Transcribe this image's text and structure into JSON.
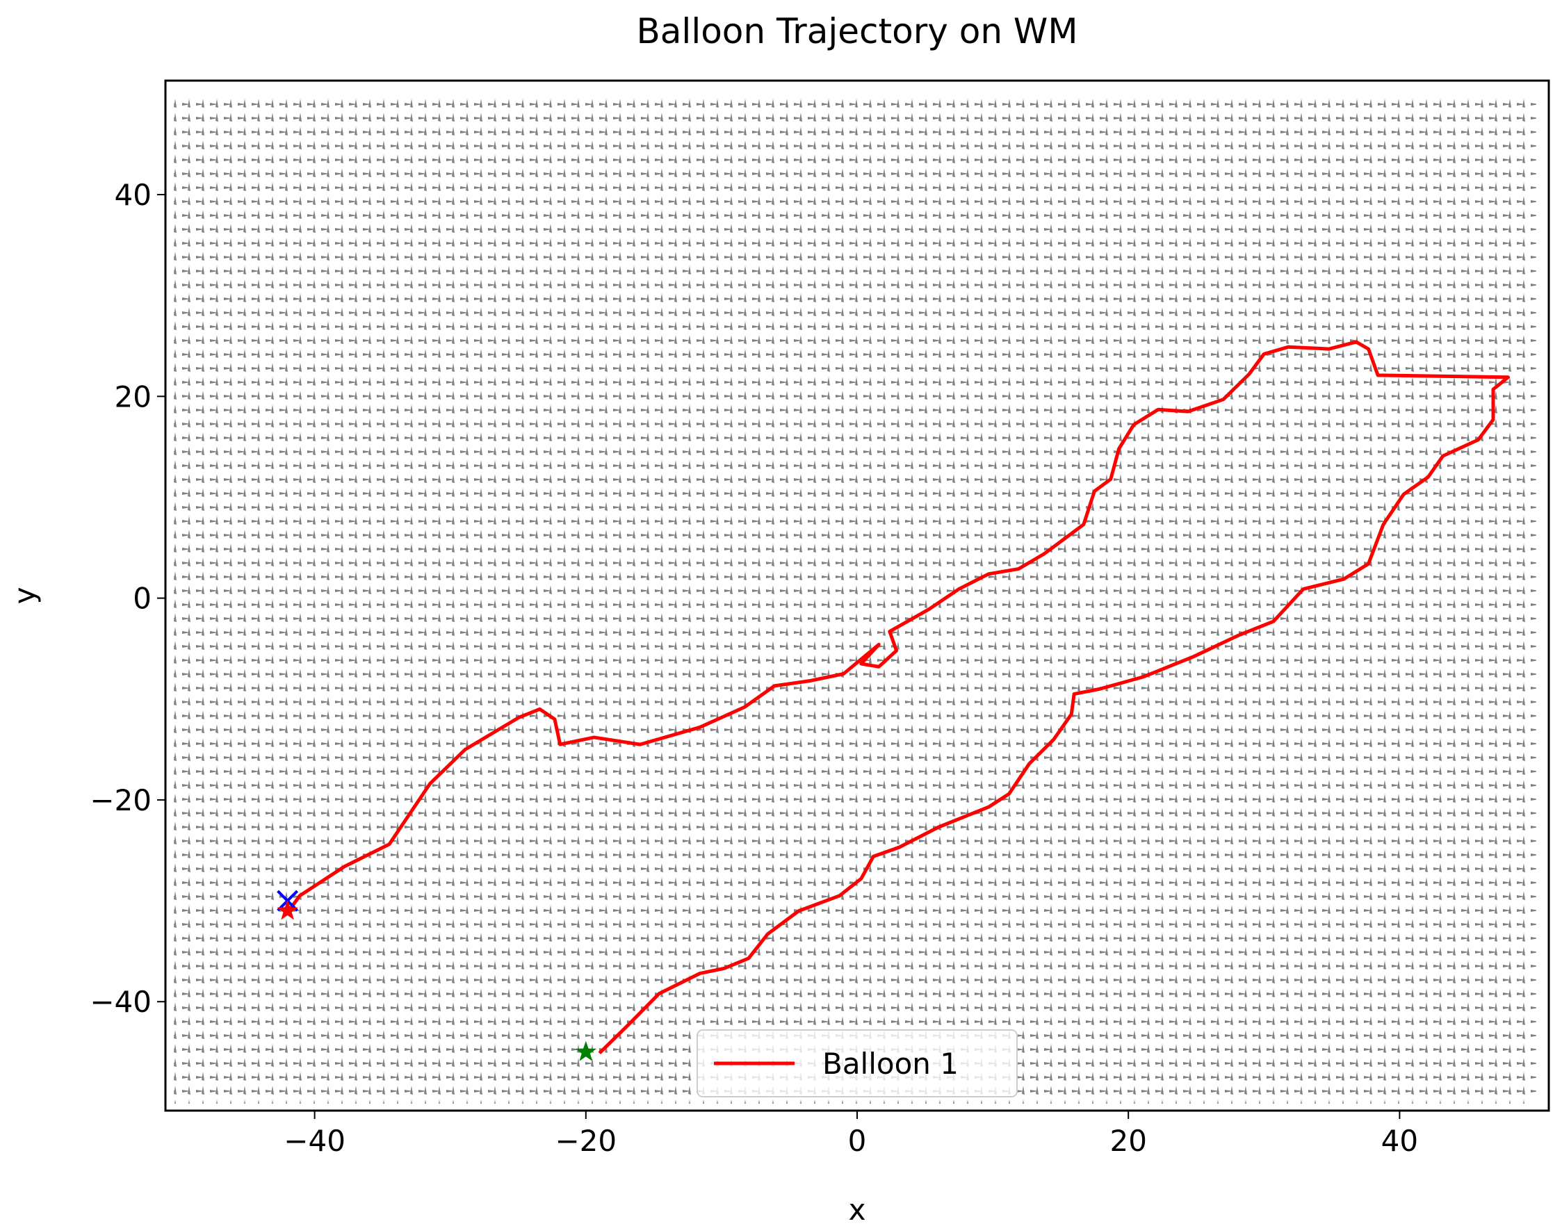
{
  "chart_data": {
    "type": "line",
    "title": "Balloon Trajectory on WM",
    "xlabel": "x",
    "ylabel": "y",
    "xlim": [
      -51,
      51
    ],
    "ylim": [
      -50.8,
      51.3
    ],
    "xticks": [
      {
        "value": -40,
        "label": "−40"
      },
      {
        "value": -20,
        "label": "−20"
      },
      0,
      20,
      40
    ],
    "yticks": [
      {
        "value": -40,
        "label": "−40"
      },
      {
        "value": -20,
        "label": "−20"
      },
      0,
      20,
      40
    ],
    "legend": "lower center",
    "series": [
      {
        "name": "Balloon 1",
        "color": "#ff0000",
        "x": [
          -19.0,
          -16.8,
          -14.6,
          -11.6,
          -9.8,
          -8.0,
          -6.6,
          -4.3,
          -1.3,
          0.3,
          1.2,
          3.1,
          6.0,
          9.7,
          11.2,
          12.7,
          14.5,
          15.8,
          16.0,
          17.9,
          21.1,
          24.8,
          28.1,
          30.7,
          32.9,
          35.9,
          37.7,
          38.8,
          40.3,
          42.1,
          43.2,
          45.8,
          46.9,
          46.9,
          48.0,
          38.4,
          37.7,
          36.8,
          34.8,
          31.8,
          30.0,
          28.9,
          27.0,
          24.4,
          22.2,
          20.4,
          19.3,
          18.7,
          17.5,
          16.7,
          15.2,
          13.8,
          11.9,
          9.7,
          7.5,
          5.3,
          2.4,
          2.9,
          1.6,
          0.3,
          1.6,
          -1.0,
          -3.5,
          -6.1,
          -8.3,
          -11.6,
          -16.0,
          -19.4,
          -21.9,
          -22.3,
          -23.4,
          -24.9,
          -28.9,
          -31.5,
          -33.0,
          -34.5,
          -37.8,
          -41.1,
          -41.8
        ],
        "y": [
          -45.1,
          -42.2,
          -39.2,
          -37.2,
          -36.7,
          -35.7,
          -33.3,
          -31.0,
          -29.5,
          -27.8,
          -25.6,
          -24.7,
          -22.7,
          -20.7,
          -19.4,
          -16.4,
          -14.0,
          -11.5,
          -9.5,
          -9.0,
          -7.8,
          -5.8,
          -3.7,
          -2.3,
          0.9,
          1.9,
          3.4,
          7.3,
          10.3,
          12.0,
          14.1,
          15.7,
          17.7,
          20.7,
          21.9,
          22.1,
          24.7,
          25.4,
          24.7,
          24.9,
          24.2,
          22.2,
          19.7,
          18.5,
          18.7,
          17.2,
          14.8,
          11.8,
          10.6,
          7.3,
          5.8,
          4.4,
          2.9,
          2.4,
          0.9,
          -1.1,
          -3.3,
          -5.2,
          -6.8,
          -6.5,
          -4.6,
          -7.5,
          -8.2,
          -8.7,
          -10.8,
          -12.8,
          -14.5,
          -13.8,
          -14.5,
          -12.0,
          -11.0,
          -11.8,
          -15.0,
          -18.4,
          -21.4,
          -24.4,
          -26.6,
          -29.5,
          -30.8
        ]
      }
    ],
    "markers": [
      {
        "x": -20,
        "y": -45,
        "color": "#008000",
        "marker": "star"
      },
      {
        "x": -42,
        "y": -30,
        "color": "#0000ff",
        "marker": "x"
      },
      {
        "x": -42,
        "y": -31,
        "color": "#ff0000",
        "marker": "star"
      }
    ]
  }
}
